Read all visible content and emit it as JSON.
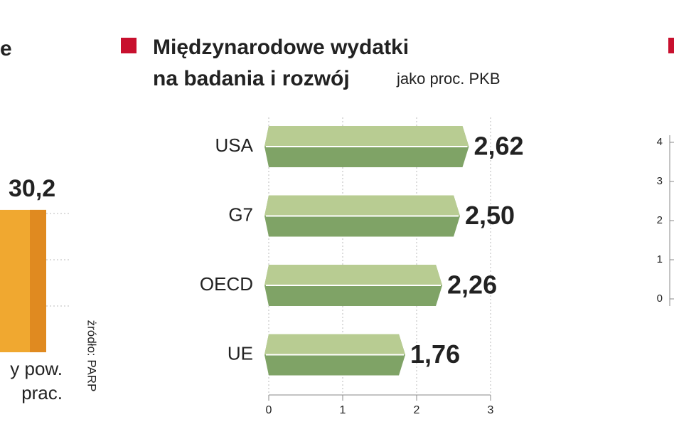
{
  "chart_data": [
    {
      "type": "hbar",
      "title_lines": [
        "Międzynarodowe wydatki",
        "na badania i rozwój"
      ],
      "subtitle": "jako proc. PKB",
      "categories": [
        "USA",
        "G7",
        "OECD",
        "UE"
      ],
      "values": [
        2.62,
        2.5,
        2.26,
        1.76
      ],
      "value_labels": [
        "2,62",
        "2,50",
        "2,26",
        "1,76"
      ],
      "color": "#7fa366",
      "marker_color": "#c8102e",
      "xlim": [
        0,
        3
      ],
      "xticks": [
        0,
        1,
        2,
        3
      ]
    },
    {
      "type": "column",
      "title": "e",
      "category_lines": [
        "y pow.",
        "prac."
      ],
      "values": [
        30.2
      ],
      "value_labels": [
        "30,2"
      ],
      "color": "#f0a830",
      "ylim": [
        0,
        40
      ],
      "source": "żródło: PARP"
    },
    {
      "type": "axis",
      "ylim": [
        0,
        4
      ],
      "yticks": [
        0,
        1,
        2,
        3,
        4
      ],
      "marker_color": "#c8102e"
    }
  ]
}
